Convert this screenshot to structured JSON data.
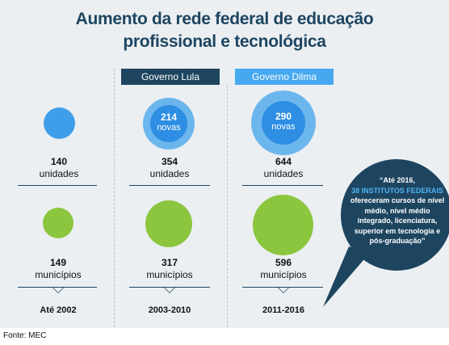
{
  "title_line1": "Aumento da rede federal de educação",
  "title_line2": "profissional e tecnológica",
  "governments": [
    {
      "label": "Governo Lula",
      "color": "#1d4560"
    },
    {
      "label": "Governo Dilma",
      "color": "#46a9ef"
    }
  ],
  "columns": [
    {
      "units_value": "140",
      "units_label": "unidades",
      "new_value": "",
      "new_label": "",
      "municipalities_value": "149",
      "municipalities_label": "municípios",
      "period": "Até 2002"
    },
    {
      "units_value": "354",
      "units_label": "unidades",
      "new_value": "214",
      "new_label": "novas",
      "municipalities_value": "317",
      "municipalities_label": "municípios",
      "period": "2003-2010"
    },
    {
      "units_value": "644",
      "units_label": "unidades",
      "new_value": "290",
      "new_label": "novas",
      "municipalities_value": "596",
      "municipalities_label": "municípios",
      "period": "2011-2016"
    }
  ],
  "quote": {
    "part1": "“Até 2016,",
    "highlight": "38 INSTITUTOS FEDERAIS",
    "part2": "ofereceram cursos de nível médio, nível médio integrado, licenciatura, superior em tecnologia e pós-graduação”"
  },
  "source": "Fonte: MEC",
  "colors": {
    "units_blue": "#3f9eea",
    "new_blue": "#2e8ee3",
    "ring_blue": "#6cb6ee",
    "municipality_green": "#8cc63e",
    "dark_navy": "#1d4560",
    "background": "#ebeff2"
  }
}
